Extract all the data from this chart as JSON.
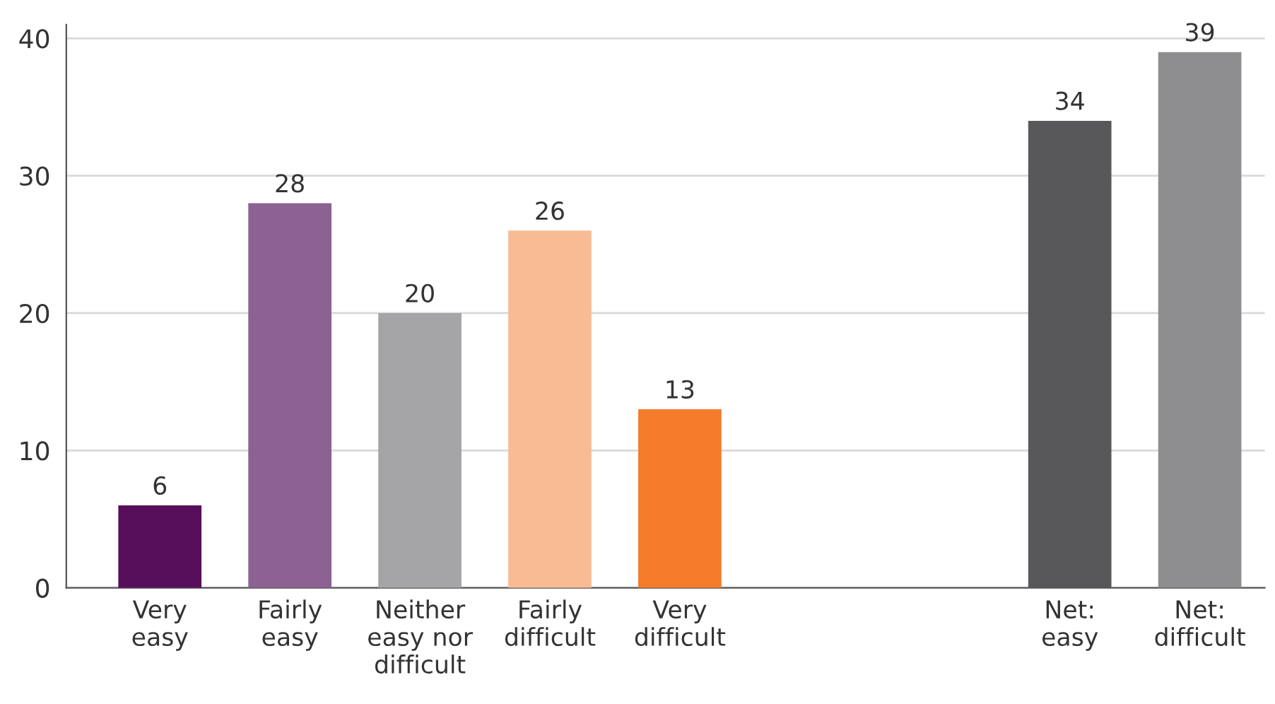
{
  "chart_data": {
    "type": "bar",
    "categories": [
      "Very\neasy",
      "Fairly\neasy",
      "Neither\neasy nor\ndifficult",
      "Fairly\ndifficult",
      "Very\ndifficult",
      null,
      null,
      "Net:\neasy",
      "Net:\ndifficult"
    ],
    "values": [
      6,
      28,
      20,
      26,
      13,
      null,
      null,
      34,
      39
    ],
    "colors": [
      "#570f5c",
      "#8c6292",
      "#a5a5a7",
      "#f9bb93",
      "#f47b2a",
      "#ffffff",
      "#ffffff",
      "#58585a",
      "#8e8e90"
    ],
    "ylim": [
      0,
      41
    ],
    "yticks": [
      0,
      10,
      20,
      30,
      40
    ],
    "grid": "y",
    "data_labels": true
  }
}
